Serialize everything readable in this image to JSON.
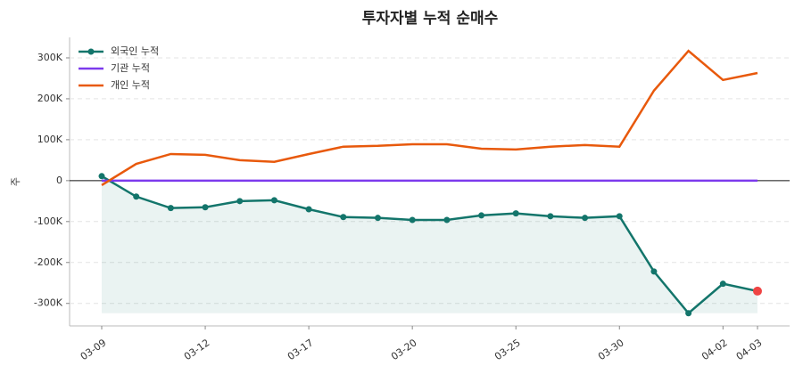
{
  "chart_data": {
    "type": "line",
    "title": "투자자별 누적 순매수",
    "ylabel": "주",
    "categories": [
      "03-09",
      null,
      null,
      "03-12",
      null,
      null,
      "03-17",
      null,
      null,
      "03-20",
      null,
      null,
      "03-25",
      null,
      null,
      "03-30",
      null,
      null,
      "04-02",
      "04-03"
    ],
    "series": [
      {
        "name": "외국인 누적",
        "color": "#13756b",
        "values": [
          11000,
          -39000,
          -67000,
          -65000,
          -50000,
          -48000,
          -70000,
          -89000,
          -91000,
          -96000,
          -96000,
          -85000,
          -80000,
          -87000,
          -91000,
          -87000,
          -222000,
          -324000,
          -252000,
          -270000
        ]
      },
      {
        "name": "기관 누적",
        "color": "#7c3aed",
        "values": [
          0,
          0,
          0,
          0,
          0,
          0,
          0,
          0,
          0,
          0,
          0,
          0,
          0,
          0,
          0,
          0,
          0,
          0,
          0,
          0
        ]
      },
      {
        "name": "개인 누적",
        "color": "#e8590c",
        "values": [
          -11000,
          41000,
          65000,
          63000,
          50000,
          46000,
          65000,
          83000,
          85000,
          89000,
          89000,
          78000,
          76000,
          83000,
          87000,
          83000,
          220000,
          317000,
          246000,
          263000
        ]
      }
    ],
    "ylim": [
      -355000,
      350000
    ],
    "yticks": [
      {
        "value": -300000,
        "label": "-300K"
      },
      {
        "value": -200000,
        "label": "-200K"
      },
      {
        "value": -100000,
        "label": "-100K"
      },
      0,
      {
        "value": 100000,
        "label": "100K"
      },
      {
        "value": 200000,
        "label": "200K"
      },
      {
        "value": 300000,
        "label": "300K"
      }
    ],
    "grid": true,
    "legend": "upper left",
    "last_point_color": "#ef4444"
  }
}
